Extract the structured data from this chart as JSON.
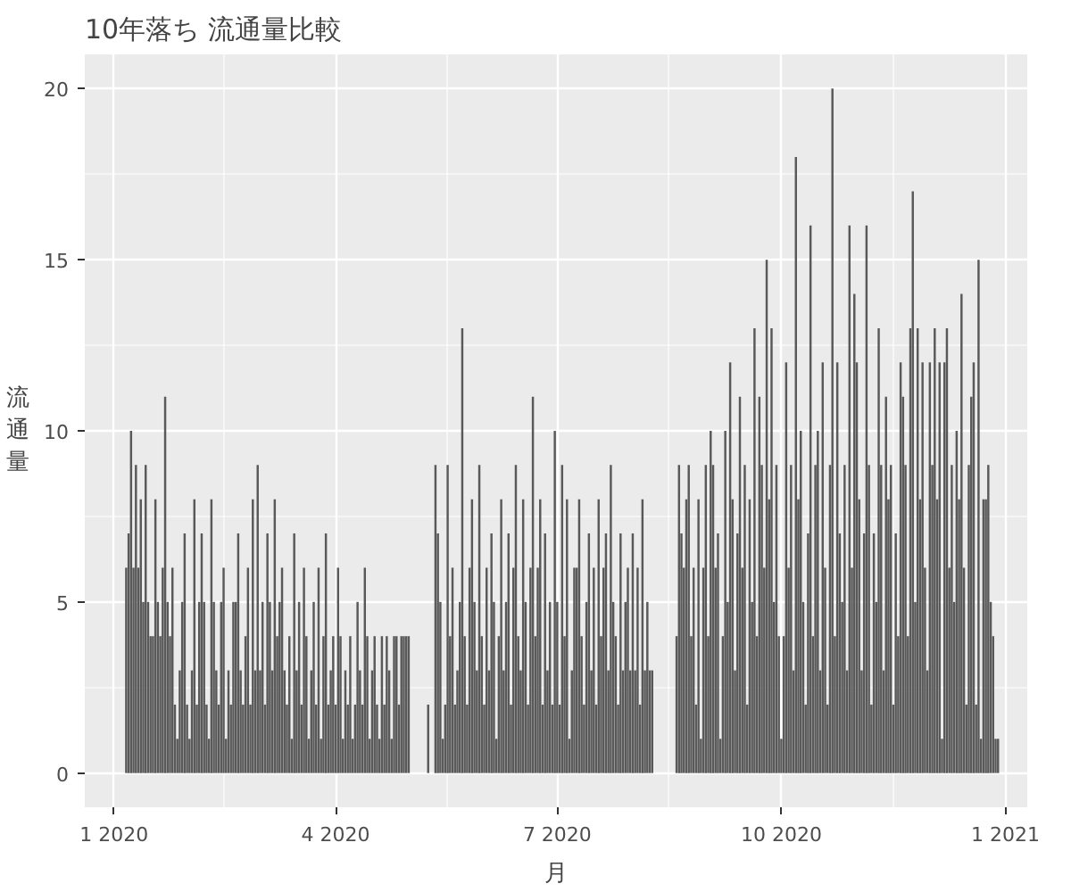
{
  "chart_data": {
    "type": "bar",
    "title": "10年落ち 流通量比較",
    "xlabel": "月",
    "ylabel": "流通量",
    "color": "#595959",
    "grid": true,
    "xlim": [
      "2019-12-20",
      "2021-01-10"
    ],
    "ylim": [
      -1,
      21
    ],
    "xticks": [
      {
        "value": "2020-01-01",
        "label": "1 2020"
      },
      {
        "value": "2020-04-01",
        "label": "4 2020"
      },
      {
        "value": "2020-07-01",
        "label": "7 2020"
      },
      {
        "value": "2020-10-01",
        "label": "10 2020"
      },
      {
        "value": "2021-01-01",
        "label": "1 2021"
      }
    ],
    "yticks": [
      0,
      5,
      10,
      15,
      20
    ],
    "x": [
      "2020-01-06",
      "2020-01-07",
      "2020-01-08",
      "2020-01-09",
      "2020-01-10",
      "2020-01-11",
      "2020-01-12",
      "2020-01-13",
      "2020-01-14",
      "2020-01-15",
      "2020-01-16",
      "2020-01-17",
      "2020-01-18",
      "2020-01-19",
      "2020-01-20",
      "2020-01-21",
      "2020-01-22",
      "2020-01-23",
      "2020-01-24",
      "2020-01-25",
      "2020-01-26",
      "2020-01-27",
      "2020-01-28",
      "2020-01-29",
      "2020-01-30",
      "2020-01-31",
      "2020-02-01",
      "2020-02-02",
      "2020-02-03",
      "2020-02-04",
      "2020-02-05",
      "2020-02-06",
      "2020-02-07",
      "2020-02-08",
      "2020-02-09",
      "2020-02-10",
      "2020-02-11",
      "2020-02-12",
      "2020-02-13",
      "2020-02-14",
      "2020-02-15",
      "2020-02-16",
      "2020-02-17",
      "2020-02-18",
      "2020-02-19",
      "2020-02-20",
      "2020-02-21",
      "2020-02-22",
      "2020-02-23",
      "2020-02-24",
      "2020-02-25",
      "2020-02-26",
      "2020-02-27",
      "2020-02-28",
      "2020-02-29",
      "2020-03-01",
      "2020-03-02",
      "2020-03-03",
      "2020-03-04",
      "2020-03-05",
      "2020-03-06",
      "2020-03-07",
      "2020-03-08",
      "2020-03-09",
      "2020-03-10",
      "2020-03-11",
      "2020-03-12",
      "2020-03-13",
      "2020-03-14",
      "2020-03-15",
      "2020-03-16",
      "2020-03-17",
      "2020-03-18",
      "2020-03-19",
      "2020-03-20",
      "2020-03-21",
      "2020-03-22",
      "2020-03-23",
      "2020-03-24",
      "2020-03-25",
      "2020-03-26",
      "2020-03-27",
      "2020-03-28",
      "2020-03-29",
      "2020-03-30",
      "2020-03-31",
      "2020-04-01",
      "2020-04-02",
      "2020-04-03",
      "2020-04-04",
      "2020-04-05",
      "2020-04-06",
      "2020-04-07",
      "2020-04-08",
      "2020-04-09",
      "2020-04-10",
      "2020-04-11",
      "2020-04-12",
      "2020-04-13",
      "2020-04-14",
      "2020-04-15",
      "2020-04-16",
      "2020-04-17",
      "2020-04-18",
      "2020-04-19",
      "2020-04-20",
      "2020-04-21",
      "2020-04-22",
      "2020-04-23",
      "2020-04-24",
      "2020-04-25",
      "2020-04-26",
      "2020-04-27",
      "2020-04-28",
      "2020-04-29",
      "2020-04-30",
      "2020-05-01",
      "2020-05-02",
      "2020-05-03",
      "2020-05-04",
      "2020-05-05",
      "2020-05-06",
      "2020-05-07",
      "2020-05-08",
      "2020-05-09",
      "2020-05-10",
      "2020-05-11",
      "2020-05-12",
      "2020-05-13",
      "2020-05-14",
      "2020-05-15",
      "2020-05-16",
      "2020-05-17",
      "2020-05-18",
      "2020-05-19",
      "2020-05-20",
      "2020-05-21",
      "2020-05-22",
      "2020-05-23",
      "2020-05-24",
      "2020-05-25",
      "2020-05-26",
      "2020-05-27",
      "2020-05-28",
      "2020-05-29",
      "2020-05-30",
      "2020-05-31",
      "2020-06-01",
      "2020-06-02",
      "2020-06-03",
      "2020-06-04",
      "2020-06-05",
      "2020-06-06",
      "2020-06-07",
      "2020-06-08",
      "2020-06-09",
      "2020-06-10",
      "2020-06-11",
      "2020-06-12",
      "2020-06-13",
      "2020-06-14",
      "2020-06-15",
      "2020-06-16",
      "2020-06-17",
      "2020-06-18",
      "2020-06-19",
      "2020-06-20",
      "2020-06-21",
      "2020-06-22",
      "2020-06-23",
      "2020-06-24",
      "2020-06-25",
      "2020-06-26",
      "2020-06-27",
      "2020-06-28",
      "2020-06-29",
      "2020-06-30",
      "2020-07-01",
      "2020-07-02",
      "2020-07-03",
      "2020-07-04",
      "2020-07-05",
      "2020-07-06",
      "2020-07-07",
      "2020-07-08",
      "2020-07-09",
      "2020-07-10",
      "2020-07-11",
      "2020-07-12",
      "2020-07-13",
      "2020-07-14",
      "2020-07-15",
      "2020-07-16",
      "2020-07-17",
      "2020-07-18",
      "2020-07-19",
      "2020-07-20",
      "2020-07-21",
      "2020-07-22",
      "2020-07-23",
      "2020-07-24",
      "2020-07-25",
      "2020-07-26",
      "2020-07-27",
      "2020-07-28",
      "2020-07-29",
      "2020-07-30",
      "2020-07-31",
      "2020-08-01",
      "2020-08-02",
      "2020-08-03",
      "2020-08-04",
      "2020-08-05",
      "2020-08-06",
      "2020-08-07",
      "2020-08-08",
      "2020-08-09",
      "2020-08-10",
      "2020-08-11",
      "2020-08-12",
      "2020-08-13",
      "2020-08-14",
      "2020-08-15",
      "2020-08-16",
      "2020-08-17",
      "2020-08-18",
      "2020-08-19",
      "2020-08-20",
      "2020-08-21",
      "2020-08-22",
      "2020-08-23",
      "2020-08-24",
      "2020-08-25",
      "2020-08-26",
      "2020-08-27",
      "2020-08-28",
      "2020-08-29",
      "2020-08-30",
      "2020-08-31",
      "2020-09-01",
      "2020-09-02",
      "2020-09-03",
      "2020-09-04",
      "2020-09-05",
      "2020-09-06",
      "2020-09-07",
      "2020-09-08",
      "2020-09-09",
      "2020-09-10",
      "2020-09-11",
      "2020-09-12",
      "2020-09-13",
      "2020-09-14",
      "2020-09-15",
      "2020-09-16",
      "2020-09-17",
      "2020-09-18",
      "2020-09-19",
      "2020-09-20",
      "2020-09-21",
      "2020-09-22",
      "2020-09-23",
      "2020-09-24",
      "2020-09-25",
      "2020-09-26",
      "2020-09-27",
      "2020-09-28",
      "2020-09-29",
      "2020-09-30",
      "2020-10-01",
      "2020-10-02",
      "2020-10-03",
      "2020-10-04",
      "2020-10-05",
      "2020-10-06",
      "2020-10-07",
      "2020-10-08",
      "2020-10-09",
      "2020-10-10",
      "2020-10-11",
      "2020-10-12",
      "2020-10-13",
      "2020-10-14",
      "2020-10-15",
      "2020-10-16",
      "2020-10-17",
      "2020-10-18",
      "2020-10-19",
      "2020-10-20",
      "2020-10-21",
      "2020-10-22",
      "2020-10-23",
      "2020-10-24",
      "2020-10-25",
      "2020-10-26",
      "2020-10-27",
      "2020-10-28",
      "2020-10-29",
      "2020-10-30",
      "2020-10-31",
      "2020-11-01",
      "2020-11-02",
      "2020-11-03",
      "2020-11-04",
      "2020-11-05",
      "2020-11-06",
      "2020-11-07",
      "2020-11-08",
      "2020-11-09",
      "2020-11-10",
      "2020-11-11",
      "2020-11-12",
      "2020-11-13",
      "2020-11-14",
      "2020-11-15",
      "2020-11-16",
      "2020-11-17",
      "2020-11-18",
      "2020-11-19",
      "2020-11-20",
      "2020-11-21",
      "2020-11-22",
      "2020-11-23",
      "2020-11-24",
      "2020-11-25",
      "2020-11-26",
      "2020-11-27",
      "2020-11-28",
      "2020-11-29",
      "2020-11-30",
      "2020-12-01",
      "2020-12-02",
      "2020-12-03",
      "2020-12-04",
      "2020-12-05",
      "2020-12-06",
      "2020-12-07",
      "2020-12-08",
      "2020-12-09",
      "2020-12-10",
      "2020-12-11",
      "2020-12-12",
      "2020-12-13",
      "2020-12-14",
      "2020-12-15",
      "2020-12-16",
      "2020-12-17",
      "2020-12-18",
      "2020-12-19",
      "2020-12-20",
      "2020-12-21",
      "2020-12-22",
      "2020-12-23",
      "2020-12-24",
      "2020-12-25",
      "2020-12-26",
      "2020-12-27",
      "2020-12-28",
      "2020-12-29"
    ],
    "values": [
      6,
      7,
      10,
      6,
      9,
      6,
      8,
      5,
      9,
      5,
      4,
      4,
      8,
      5,
      4,
      6,
      11,
      5,
      4,
      6,
      2,
      1,
      3,
      5,
      7,
      2,
      1,
      3,
      8,
      2,
      5,
      7,
      5,
      2,
      1,
      8,
      5,
      3,
      2,
      5,
      6,
      1,
      3,
      2,
      5,
      5,
      7,
      3,
      2,
      4,
      6,
      2,
      8,
      3,
      9,
      3,
      5,
      2,
      7,
      5,
      3,
      8,
      4,
      5,
      6,
      3,
      2,
      4,
      1,
      7,
      3,
      5,
      2,
      6,
      4,
      1,
      3,
      5,
      2,
      6,
      1,
      4,
      7,
      2,
      3,
      4,
      2,
      6,
      4,
      1,
      3,
      2,
      4,
      1,
      2,
      5,
      3,
      2,
      6,
      4,
      1,
      3,
      4,
      2,
      1,
      4,
      2,
      4,
      3,
      1,
      4,
      4,
      2,
      4,
      4,
      4,
      4,
      null,
      null,
      null,
      null,
      null,
      null,
      null,
      2,
      null,
      null,
      9,
      7,
      5,
      1,
      2,
      9,
      4,
      6,
      2,
      3,
      5,
      13,
      4,
      2,
      6,
      8,
      5,
      3,
      9,
      4,
      2,
      6,
      3,
      7,
      5,
      1,
      4,
      8,
      3,
      5,
      7,
      2,
      6,
      9,
      4,
      3,
      8,
      5,
      2,
      6,
      11,
      4,
      6,
      8,
      2,
      7,
      3,
      5,
      2,
      10,
      5,
      2,
      9,
      4,
      8,
      1,
      3,
      6,
      6,
      8,
      4,
      2,
      5,
      7,
      3,
      6,
      2,
      8,
      4,
      6,
      7,
      3,
      9,
      5,
      4,
      2,
      7,
      3,
      5,
      6,
      3,
      7,
      3,
      6,
      2,
      8,
      3,
      5,
      3,
      3,
      null,
      null,
      null,
      null,
      null,
      null,
      null,
      null,
      null,
      4,
      9,
      7,
      6,
      8,
      9,
      4,
      6,
      2,
      8,
      1,
      6,
      9,
      4,
      10,
      9,
      6,
      7,
      1,
      4,
      10,
      5,
      12,
      8,
      3,
      7,
      11,
      6,
      9,
      2,
      8,
      5,
      13,
      4,
      11,
      9,
      6,
      15,
      8,
      13,
      5,
      9,
      4,
      1,
      4,
      12,
      6,
      9,
      3,
      18,
      8,
      10,
      5,
      2,
      7,
      16,
      4,
      9,
      10,
      3,
      12,
      6,
      2,
      9,
      20,
      4,
      12,
      7,
      5,
      9,
      3,
      16,
      6,
      14,
      12,
      8,
      3,
      7,
      16,
      9,
      2,
      7,
      5,
      13,
      9,
      3,
      11,
      8,
      9,
      2,
      7,
      4,
      12,
      11,
      9,
      4,
      13,
      17,
      5,
      13,
      8,
      12,
      6,
      3,
      12,
      9,
      13,
      8,
      12,
      1,
      12,
      13,
      6,
      9,
      5,
      10,
      8,
      14,
      6,
      2,
      9,
      11,
      12,
      2,
      15,
      1,
      8,
      8,
      9,
      5,
      4,
      1,
      1
    ]
  }
}
